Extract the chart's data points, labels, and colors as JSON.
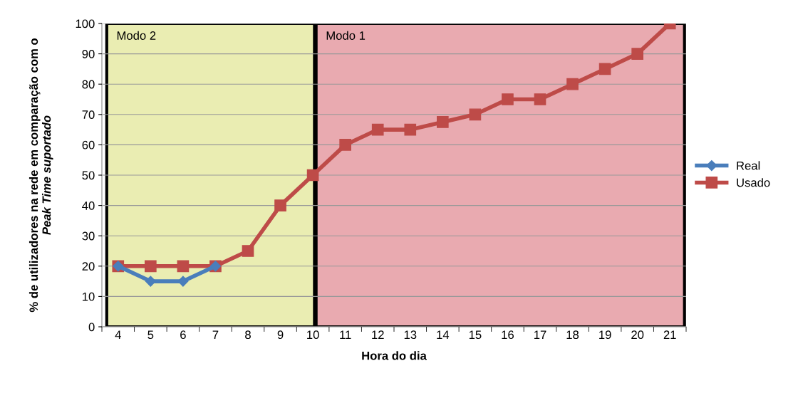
{
  "chart_data": {
    "type": "line",
    "xlabel": "Hora do dia",
    "ylabel": "% de utilizadores na rede em comparação com o\nPeak Time suportado",
    "categories": [
      "4",
      "5",
      "6",
      "7",
      "8",
      "9",
      "10",
      "11",
      "12",
      "13",
      "14",
      "15",
      "16",
      "17",
      "18",
      "19",
      "20",
      "21"
    ],
    "series": [
      {
        "name": "Real",
        "color": "#4a7ebb",
        "marker": "diamond",
        "values": [
          20,
          15,
          15,
          20,
          null,
          null,
          null,
          null,
          null,
          null,
          null,
          null,
          null,
          null,
          null,
          null,
          null,
          null
        ]
      },
      {
        "name": "Usado",
        "color": "#be4b48",
        "marker": "square",
        "values": [
          20,
          20,
          20,
          20,
          25,
          40,
          50,
          60,
          65,
          65,
          67.5,
          70,
          75,
          75,
          80,
          85,
          90,
          100
        ]
      }
    ],
    "bands": [
      {
        "axis": "x",
        "from": "4",
        "to": "10",
        "label": "Modo 2",
        "color": "#eaedb2"
      },
      {
        "axis": "x",
        "from": "10",
        "to": "21",
        "label": "Modo 1",
        "color": "#e9aab0"
      }
    ],
    "ylim": [
      0,
      100
    ],
    "yticks": [
      0,
      10,
      20,
      30,
      40,
      50,
      60,
      70,
      80,
      90,
      100
    ],
    "grid": "y",
    "legend": "right",
    "line_style": "solid"
  }
}
